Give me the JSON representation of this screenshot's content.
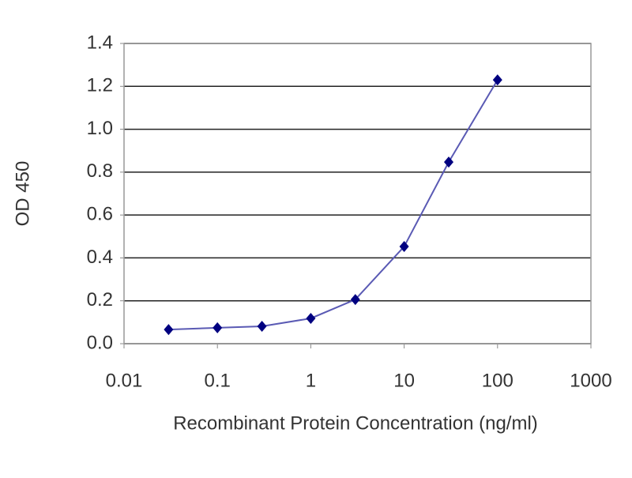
{
  "chart_data": {
    "type": "line",
    "x_label": "Recombinant Protein Concentration (ng/ml)",
    "y_label": "OD 450",
    "x": [
      0.03,
      0.1,
      0.3,
      1,
      3,
      10,
      30,
      100
    ],
    "series": [
      {
        "color": "#000080",
        "line_color": "#5a5ab4",
        "values": [
          0.066,
          0.074,
          0.081,
          0.118,
          0.206,
          0.453,
          0.847,
          1.23
        ]
      }
    ],
    "xscale": "log",
    "xlim": [
      0.01,
      1000
    ],
    "xticks": [
      0.01,
      0.1,
      1,
      10,
      100,
      1000
    ],
    "ylim": [
      0,
      1.4
    ],
    "yticks": [
      {
        "value": 0,
        "label": "0.0"
      },
      0.2,
      0.4,
      0.6,
      0.8,
      {
        "value": 1,
        "label": "1.0"
      },
      1.2,
      1.4
    ],
    "grid": true
  }
}
